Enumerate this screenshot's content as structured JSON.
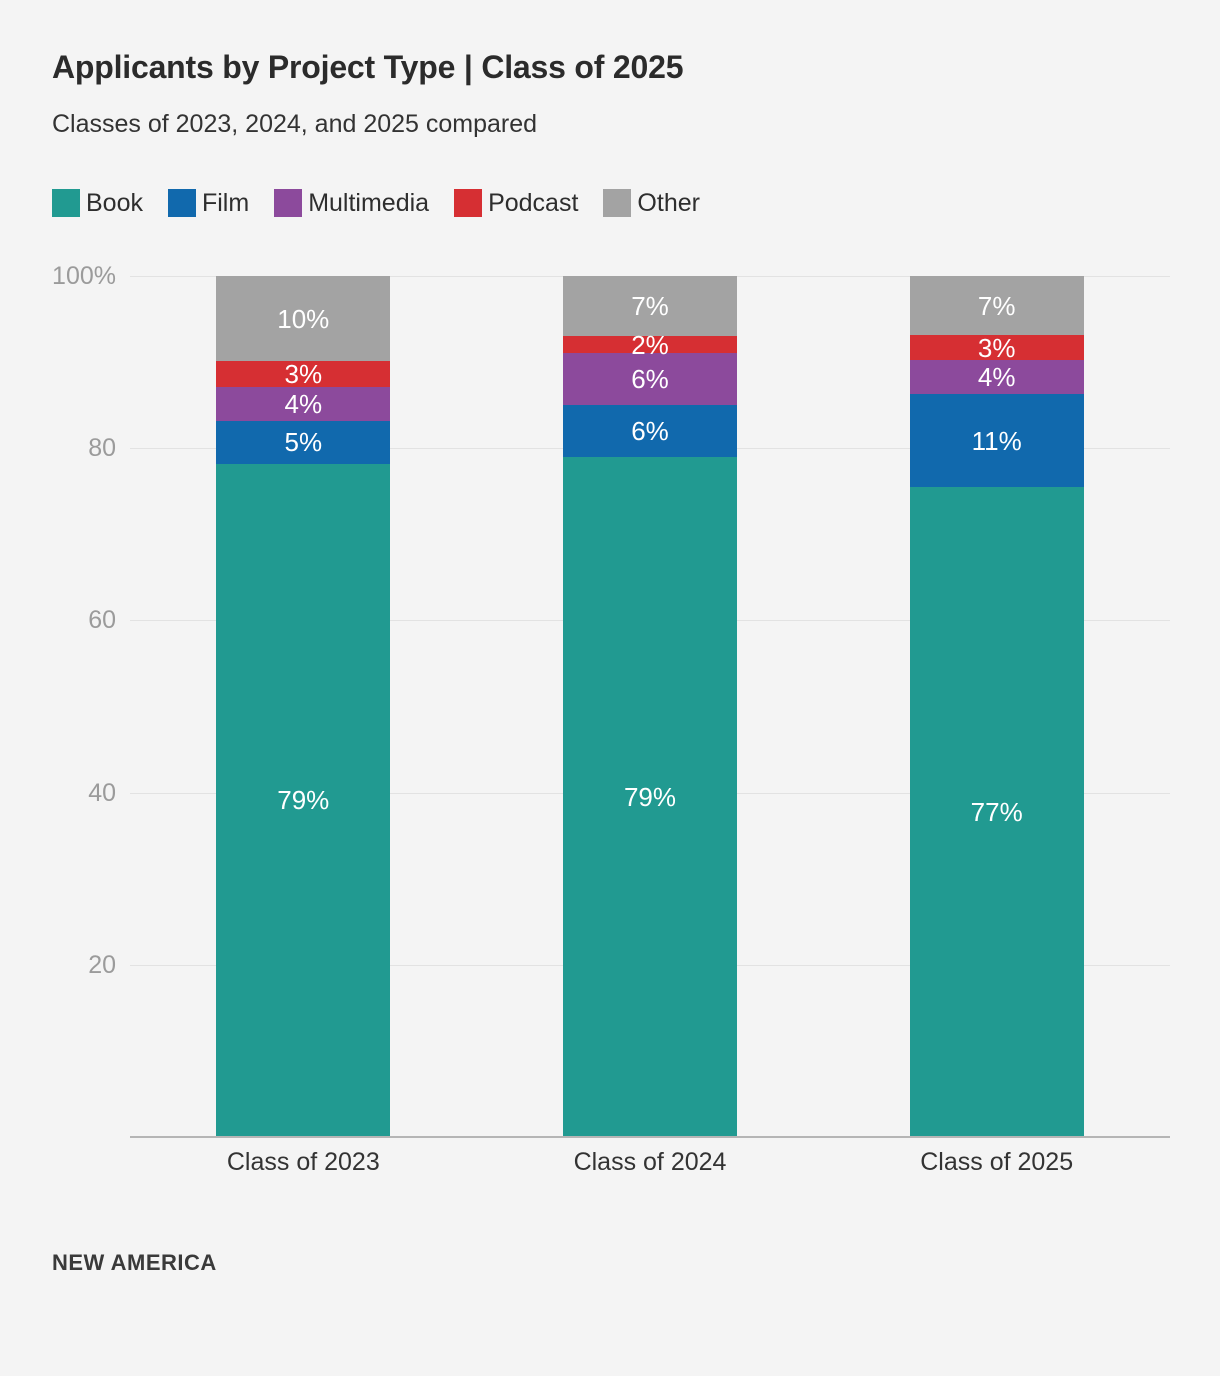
{
  "header": {
    "title": "Applicants by Project Type | Class of 2025",
    "subtitle": "Classes of 2023, 2024, and 2025 compared"
  },
  "legend": {
    "items": [
      "Book",
      "Film",
      "Multimedia",
      "Podcast",
      "Other"
    ]
  },
  "chart_data": {
    "type": "bar",
    "stacked": true,
    "percent_scale": true,
    "title": "Applicants by Project Type | Class of 2025",
    "subtitle": "Classes of 2023, 2024, and 2025 compared",
    "categories": [
      "Class of 2023",
      "Class of 2024",
      "Class of 2025"
    ],
    "series": [
      {
        "name": "Book",
        "color": "#219a91",
        "values": [
          79,
          79,
          77
        ]
      },
      {
        "name": "Film",
        "color": "#1169ad",
        "values": [
          5,
          6,
          11
        ]
      },
      {
        "name": "Multimedia",
        "color": "#8c4a9c",
        "values": [
          4,
          6,
          4
        ]
      },
      {
        "name": "Podcast",
        "color": "#d62f33",
        "values": [
          3,
          2,
          3
        ]
      },
      {
        "name": "Other",
        "color": "#a3a3a3",
        "values": [
          10,
          7,
          7
        ]
      }
    ],
    "value_suffix": "%",
    "xlabel": "",
    "ylabel": "",
    "ylim": [
      0,
      100
    ],
    "yticks": [
      {
        "value": 100,
        "label": "100%"
      },
      {
        "value": 80,
        "label": "80"
      },
      {
        "value": 60,
        "label": "60"
      },
      {
        "value": 40,
        "label": "40"
      },
      {
        "value": 20,
        "label": "20"
      }
    ],
    "grid": true,
    "legend_position": "top-left",
    "bar_label_color": "#ffffff"
  },
  "footer": {
    "brand": "NEW AMERICA"
  },
  "colors": {
    "background": "#f4f4f4",
    "title": "#2b2b2b",
    "text": "#333333",
    "tick": "#9b9b9b",
    "gridline": "#e2e2e2",
    "baseline": "#b5b5b5"
  }
}
